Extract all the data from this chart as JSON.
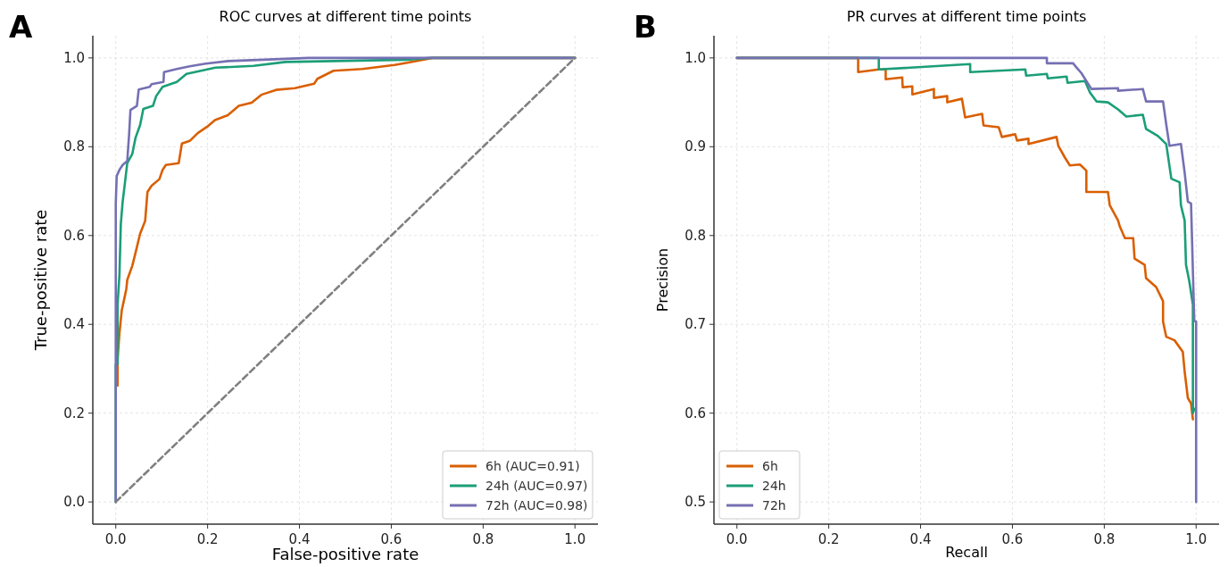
{
  "chart_data": [
    {
      "type": "line",
      "title": "ROC curves at different time points",
      "xlabel": "False-positive rate",
      "ylabel": "True-positive rate",
      "annotations": [
        "A"
      ],
      "xlim": [
        -0.05,
        1.05
      ],
      "ylim": [
        -0.05,
        1.05
      ],
      "xticks": [
        {
          "value": 0,
          "label": "0.0"
        },
        {
          "value": 0.2,
          "label": "0.2"
        },
        {
          "value": 0.4,
          "label": "0.4"
        },
        {
          "value": 0.6,
          "label": "0.6"
        },
        {
          "value": 0.8,
          "label": "0.8"
        },
        {
          "value": 1,
          "label": "1.0"
        }
      ],
      "yticks": [
        {
          "value": 0,
          "label": "0.0"
        },
        {
          "value": 0.2,
          "label": "0.2"
        },
        {
          "value": 0.4,
          "label": "0.4"
        },
        {
          "value": 0.6,
          "label": "0.6"
        },
        {
          "value": 0.8,
          "label": "0.8"
        },
        {
          "value": 1,
          "label": "1.0"
        }
      ],
      "grid": true,
      "legend": "bottom right",
      "marker": "none",
      "series": [
        {
          "name": "6h (AUC=0.91)",
          "color": "#d95f02",
          "x": [
            0.004,
            0.004,
            0.008,
            0.013,
            0.018,
            0.023,
            0.025,
            0.036,
            0.043,
            0.053,
            0.064,
            0.069,
            0.078,
            0.095,
            0.102,
            0.109,
            0.137,
            0.144,
            0.161,
            0.179,
            0.199,
            0.216,
            0.244,
            0.268,
            0.296,
            0.317,
            0.349,
            0.39,
            0.432,
            0.439,
            0.474,
            0.537,
            0.607,
            0.635,
            0.684,
            0.69,
            1
          ],
          "values": [
            0.262,
            0.322,
            0.38,
            0.431,
            0.455,
            0.48,
            0.5,
            0.532,
            0.561,
            0.604,
            0.633,
            0.698,
            0.712,
            0.727,
            0.748,
            0.759,
            0.763,
            0.807,
            0.813,
            0.831,
            0.845,
            0.86,
            0.871,
            0.892,
            0.899,
            0.917,
            0.928,
            0.932,
            0.942,
            0.953,
            0.971,
            0.975,
            0.984,
            0.989,
            0.999,
            1,
            1
          ]
        },
        {
          "name": "24h (AUC=0.97)",
          "color": "#1b9e77",
          "x": [
            0,
            0,
            0.004,
            0.004,
            0.008,
            0.011,
            0.015,
            0.02,
            0.025,
            0.036,
            0.043,
            0.053,
            0.06,
            0.081,
            0.088,
            0.102,
            0.133,
            0.154,
            0.217,
            0.3,
            0.37,
            0.635,
            0.684,
            1
          ],
          "values": [
            0,
            0.31,
            0.31,
            0.446,
            0.511,
            0.626,
            0.676,
            0.719,
            0.763,
            0.784,
            0.82,
            0.849,
            0.885,
            0.892,
            0.914,
            0.935,
            0.946,
            0.964,
            0.978,
            0.982,
            0.991,
            0.996,
            1,
            1
          ]
        },
        {
          "name": "72h (AUC=0.98)",
          "color": "#7570b3",
          "x": [
            0,
            0,
            0.002,
            0.008,
            0.015,
            0.025,
            0.029,
            0.032,
            0.046,
            0.05,
            0.074,
            0.078,
            0.104,
            0.105,
            0.133,
            0.161,
            0.196,
            0.245,
            0.321,
            0.419,
            1
          ],
          "values": [
            0,
            0.673,
            0.734,
            0.748,
            0.759,
            0.768,
            0.827,
            0.883,
            0.892,
            0.929,
            0.935,
            0.941,
            0.946,
            0.968,
            0.975,
            0.981,
            0.987,
            0.993,
            0.996,
            1,
            1
          ]
        },
        {
          "color": "#808080",
          "line_style": "dashed",
          "x": [
            0,
            1
          ],
          "values": [
            0,
            1
          ]
        }
      ]
    },
    {
      "type": "line",
      "title": "PR curves at different time points",
      "xlabel": "Recall",
      "ylabel": "Precision",
      "annotations": [
        "B"
      ],
      "xlim": [
        -0.05,
        1.05
      ],
      "ylim": [
        0.475,
        1.025
      ],
      "xticks": [
        {
          "value": 0,
          "label": "0.0"
        },
        {
          "value": 0.2,
          "label": "0.2"
        },
        {
          "value": 0.4,
          "label": "0.4"
        },
        {
          "value": 0.6,
          "label": "0.6"
        },
        {
          "value": 0.8,
          "label": "0.8"
        },
        {
          "value": 1,
          "label": "1.0"
        }
      ],
      "yticks": [
        {
          "value": 0.5,
          "label": "0.5"
        },
        {
          "value": 0.6,
          "label": "0.6"
        },
        {
          "value": 0.7,
          "label": "0.7"
        },
        {
          "value": 0.8,
          "label": "0.8"
        },
        {
          "value": 0.9,
          "label": "0.9"
        },
        {
          "value": 1,
          "label": "1.0"
        }
      ],
      "grid": true,
      "legend": "bottom left",
      "marker": "none",
      "series": [
        {
          "name": "6h",
          "color": "#d95f02",
          "x": [
            0,
            0.264,
            0.264,
            0.309,
            0.324,
            0.324,
            0.36,
            0.361,
            0.382,
            0.382,
            0.429,
            0.429,
            0.458,
            0.458,
            0.49,
            0.497,
            0.534,
            0.537,
            0.57,
            0.577,
            0.606,
            0.61,
            0.635,
            0.635,
            0.696,
            0.7,
            0.714,
            0.725,
            0.747,
            0.761,
            0.761,
            0.808,
            0.812,
            0.83,
            0.834,
            0.845,
            0.863,
            0.866,
            0.888,
            0.891,
            0.913,
            0.928,
            0.928,
            0.935,
            0.953,
            0.971,
            0.975,
            0.982,
            0.989,
            0.993
          ],
          "values": [
            1,
            1,
            0.984,
            0.987,
            0.987,
            0.976,
            0.978,
            0.967,
            0.968,
            0.959,
            0.965,
            0.955,
            0.957,
            0.95,
            0.954,
            0.933,
            0.937,
            0.924,
            0.922,
            0.911,
            0.914,
            0.907,
            0.909,
            0.903,
            0.911,
            0.901,
            0.888,
            0.879,
            0.88,
            0.873,
            0.849,
            0.849,
            0.834,
            0.817,
            0.81,
            0.797,
            0.797,
            0.774,
            0.767,
            0.752,
            0.742,
            0.726,
            0.703,
            0.686,
            0.682,
            0.669,
            0.647,
            0.617,
            0.611,
            0.593
          ]
        },
        {
          "name": "24h",
          "color": "#1b9e77",
          "x": [
            0,
            0.309,
            0.309,
            0.508,
            0.508,
            0.628,
            0.63,
            0.675,
            0.677,
            0.718,
            0.72,
            0.758,
            0.769,
            0.783,
            0.808,
            0.83,
            0.848,
            0.884,
            0.891,
            0.917,
            0.935,
            0.946,
            0.964,
            0.967,
            0.975,
            0.978,
            0.985,
            0.993,
            0.993,
            0.996
          ],
          "values": [
            1,
            1,
            0.987,
            0.993,
            0.984,
            0.987,
            0.98,
            0.982,
            0.977,
            0.979,
            0.972,
            0.974,
            0.961,
            0.951,
            0.95,
            0.942,
            0.934,
            0.936,
            0.92,
            0.912,
            0.903,
            0.864,
            0.86,
            0.834,
            0.817,
            0.767,
            0.749,
            0.722,
            0.6,
            0.605
          ]
        },
        {
          "name": "72h",
          "color": "#7570b3",
          "x": [
            0,
            0.675,
            0.675,
            0.732,
            0.74,
            0.75,
            0.761,
            0.772,
            0.83,
            0.83,
            0.884,
            0.891,
            0.928,
            0.935,
            0.942,
            0.967,
            0.975,
            0.982,
            0.989,
            0.993,
            0.996,
            1,
            1
          ],
          "values": [
            1,
            1,
            0.994,
            0.994,
            0.989,
            0.983,
            0.974,
            0.965,
            0.966,
            0.963,
            0.965,
            0.951,
            0.951,
            0.925,
            0.901,
            0.903,
            0.871,
            0.838,
            0.836,
            0.759,
            0.704,
            0.703,
            0.5
          ]
        }
      ]
    }
  ]
}
